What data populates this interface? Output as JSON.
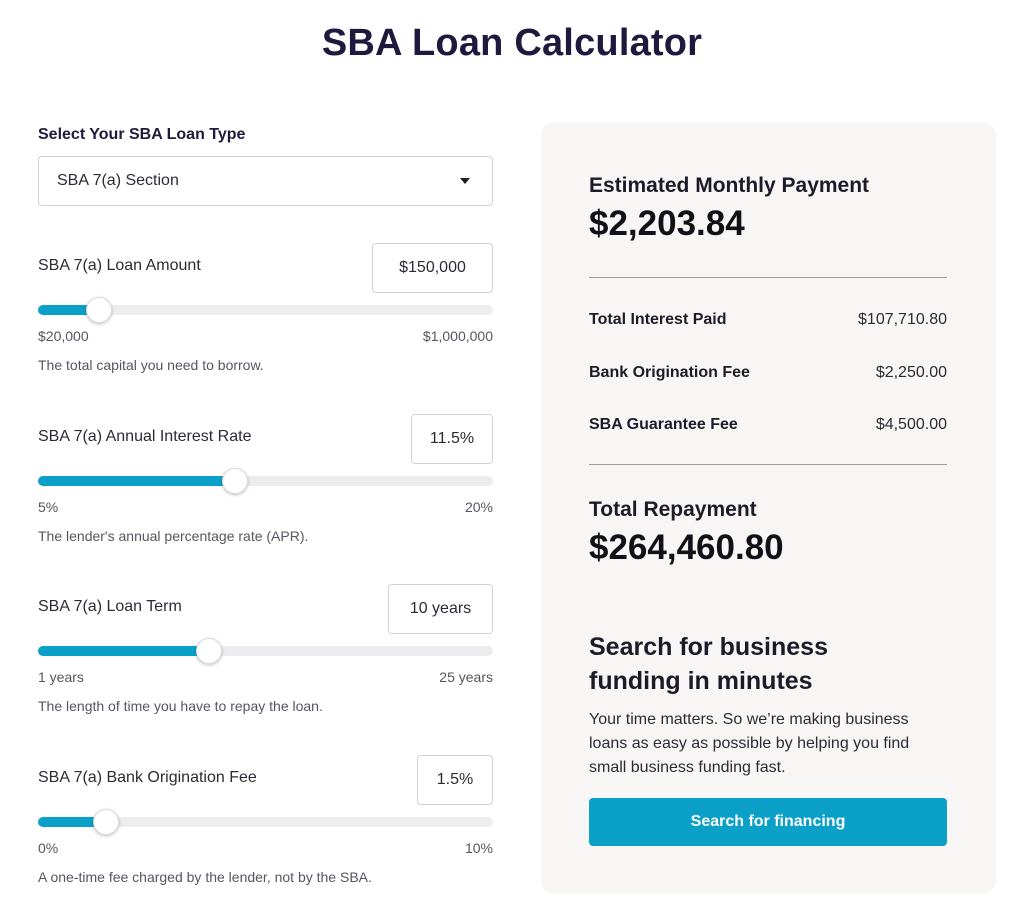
{
  "page_title": "SBA Loan Calculator",
  "loan_type": {
    "label": "Select Your SBA Loan Type",
    "selected": "SBA 7(a) Section"
  },
  "sliders": [
    {
      "label": "SBA 7(a) Loan Amount",
      "value": "$150,000",
      "min": "$20,000",
      "max": "$1,000,000",
      "help": "The total capital you need to borrow.",
      "level_percent": 13.3
    },
    {
      "label": "SBA 7(a) Annual Interest Rate",
      "value": "11.5%",
      "min": "5%",
      "max": "20%",
      "help": "The lender's annual percentage rate (APR).",
      "level_percent": 43.3
    },
    {
      "label": "SBA 7(a) Loan Term",
      "value": "10 years",
      "min": "1 years",
      "max": "25 years",
      "help": "The length of time you have to repay the loan.",
      "level_percent": 37.5
    },
    {
      "label": "SBA 7(a) Bank Origination Fee",
      "value": "1.5%",
      "min": "0%",
      "max": "10%",
      "help": "A one-time fee charged by the lender, not by the SBA.",
      "level_percent": 15
    }
  ],
  "results": {
    "monthly_label": "Estimated Monthly Payment",
    "monthly_value": "$2,203.84",
    "rows": [
      {
        "label": "Total Interest Paid",
        "value": "$107,710.80"
      },
      {
        "label": "Bank Origination Fee",
        "value": "$2,250.00"
      },
      {
        "label": "SBA Guarantee Fee",
        "value": "$4,500.00"
      }
    ],
    "total_label": "Total Repayment",
    "total_value": "$264,460.80"
  },
  "promo": {
    "title": "Search for business funding in minutes",
    "body": "Your time matters. So we’re making business loans as easy as possible by helping you find small business funding fast.",
    "button": "Search for financing"
  },
  "colors": {
    "accent": "#0aa0c8",
    "title": "#1f1a3d",
    "panel_bg": "#f7f6f4"
  }
}
